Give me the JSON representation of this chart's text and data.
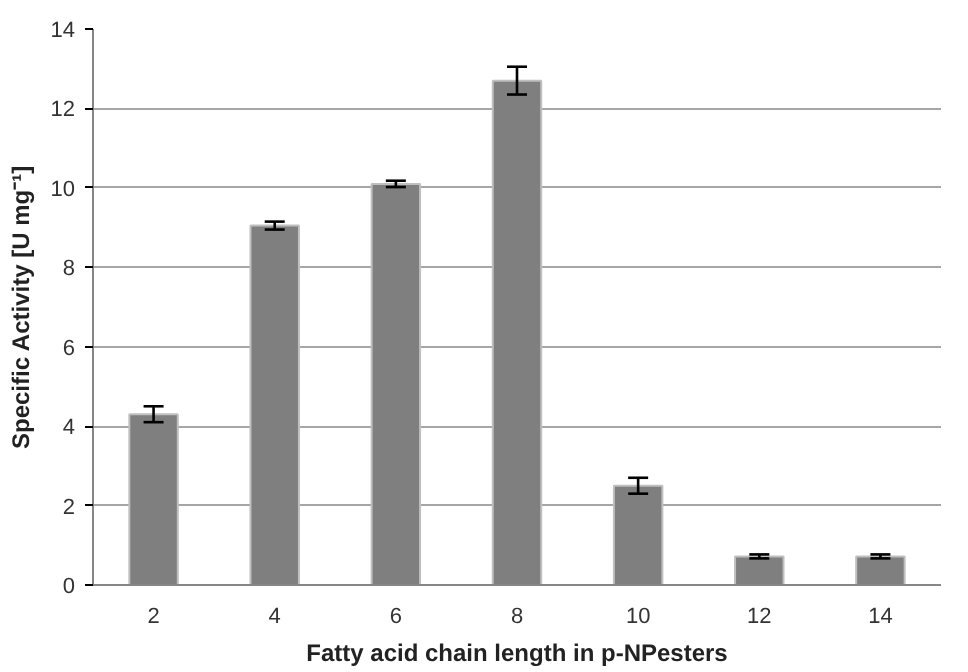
{
  "chart_data": {
    "type": "bar",
    "xlabel": "Fatty acid chain length in p-NPesters",
    "ylabel": "Specific Activity [U mg⁻¹]",
    "categories": [
      "2",
      "4",
      "6",
      "8",
      "10",
      "12",
      "14"
    ],
    "values": [
      4.3,
      9.05,
      10.1,
      12.7,
      2.5,
      0.72,
      0.72
    ],
    "errors": [
      0.2,
      0.1,
      0.08,
      0.35,
      0.2,
      0.05,
      0.05
    ],
    "color": "#7f7f7f",
    "ylim": [
      0,
      14
    ],
    "yticks": [
      0,
      2,
      4,
      6,
      8,
      10,
      12,
      14
    ],
    "grid": "y"
  }
}
